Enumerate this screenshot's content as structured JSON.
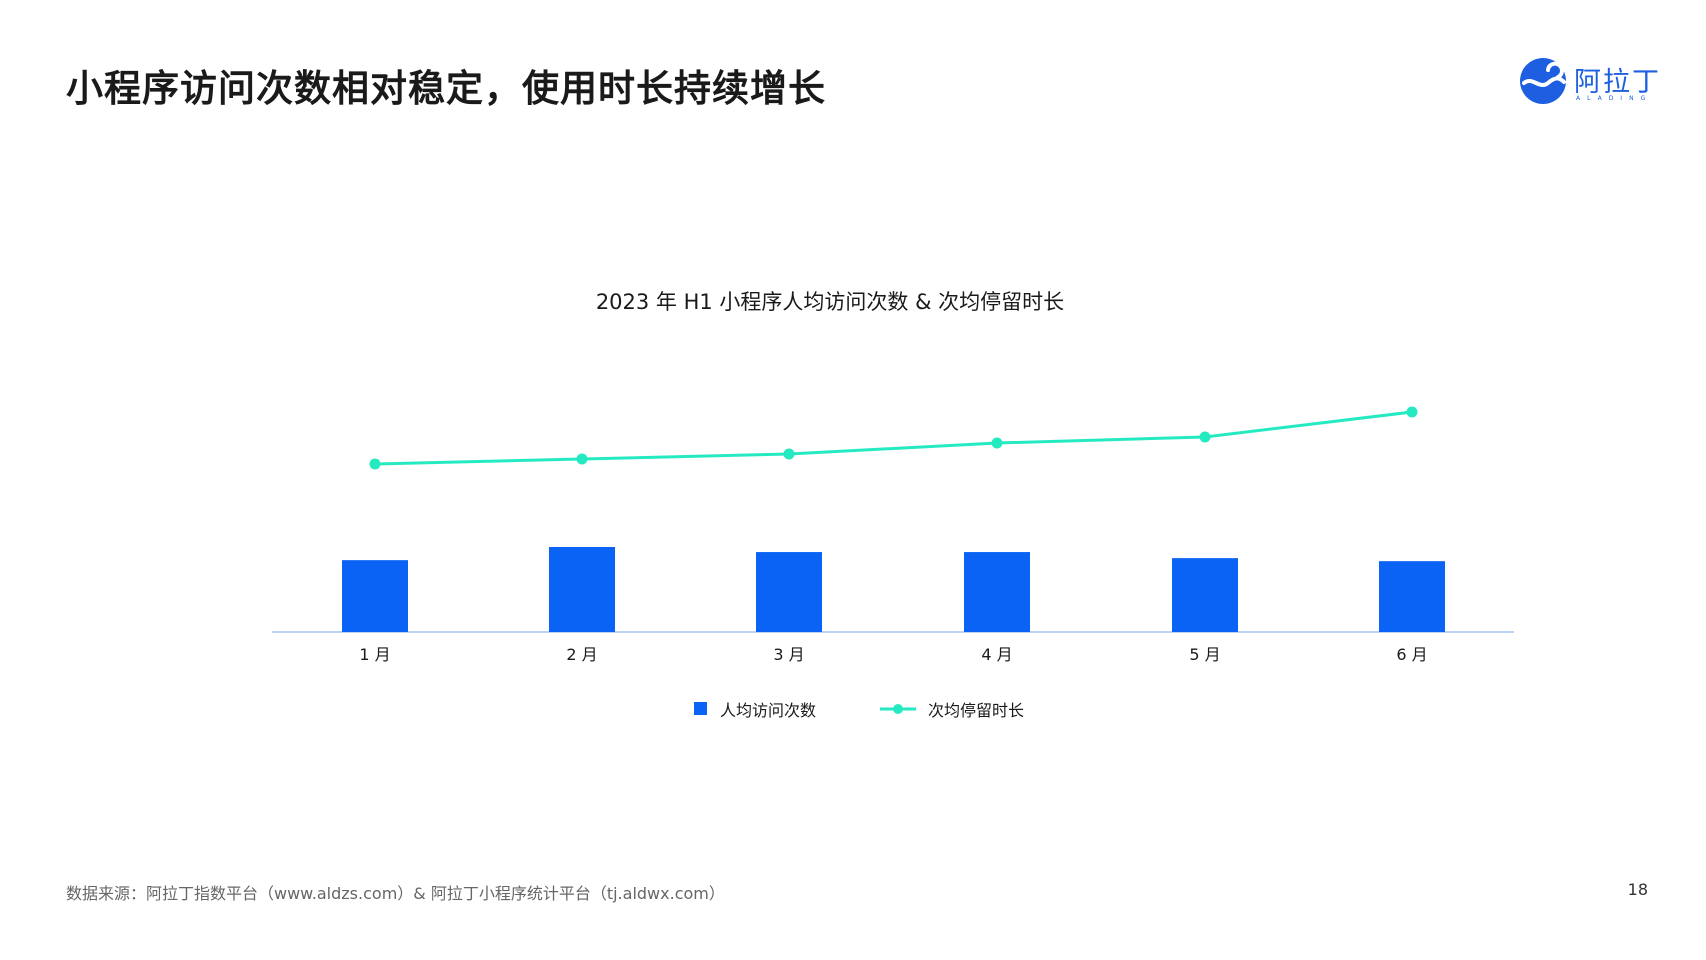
{
  "header": {
    "title": "小程序访问次数相对稳定，使用时长持续增长"
  },
  "logo": {
    "name": "阿拉丁",
    "subtitle": "ALADING",
    "color": "#1d5fe0"
  },
  "chart_data": {
    "type": "bar",
    "title": "2023 年 H1 小程序人均访问次数 & 次均停留时长",
    "categories": [
      "1 月",
      "2 月",
      "3 月",
      "4 月",
      "5 月",
      "6 月"
    ],
    "series": [
      {
        "name": "人均访问次数",
        "type": "bar",
        "color": "#0b63f6",
        "values": [
          7.1,
          8.4,
          7.9,
          7.9,
          7.3,
          7.0
        ]
      },
      {
        "name": "次均停留时长",
        "type": "line",
        "color": "#25eac1",
        "values": [
          16.8,
          17.3,
          17.8,
          18.9,
          19.5,
          22.0
        ]
      }
    ],
    "grid": false,
    "legend": "bottom",
    "axis_color": "#bcd3f2"
  },
  "footer": {
    "source": "数据来源：阿拉丁指数平台（www.aldzs.com）& 阿拉丁小程序统计平台（tj.aldwx.com）",
    "page_number": "18"
  }
}
